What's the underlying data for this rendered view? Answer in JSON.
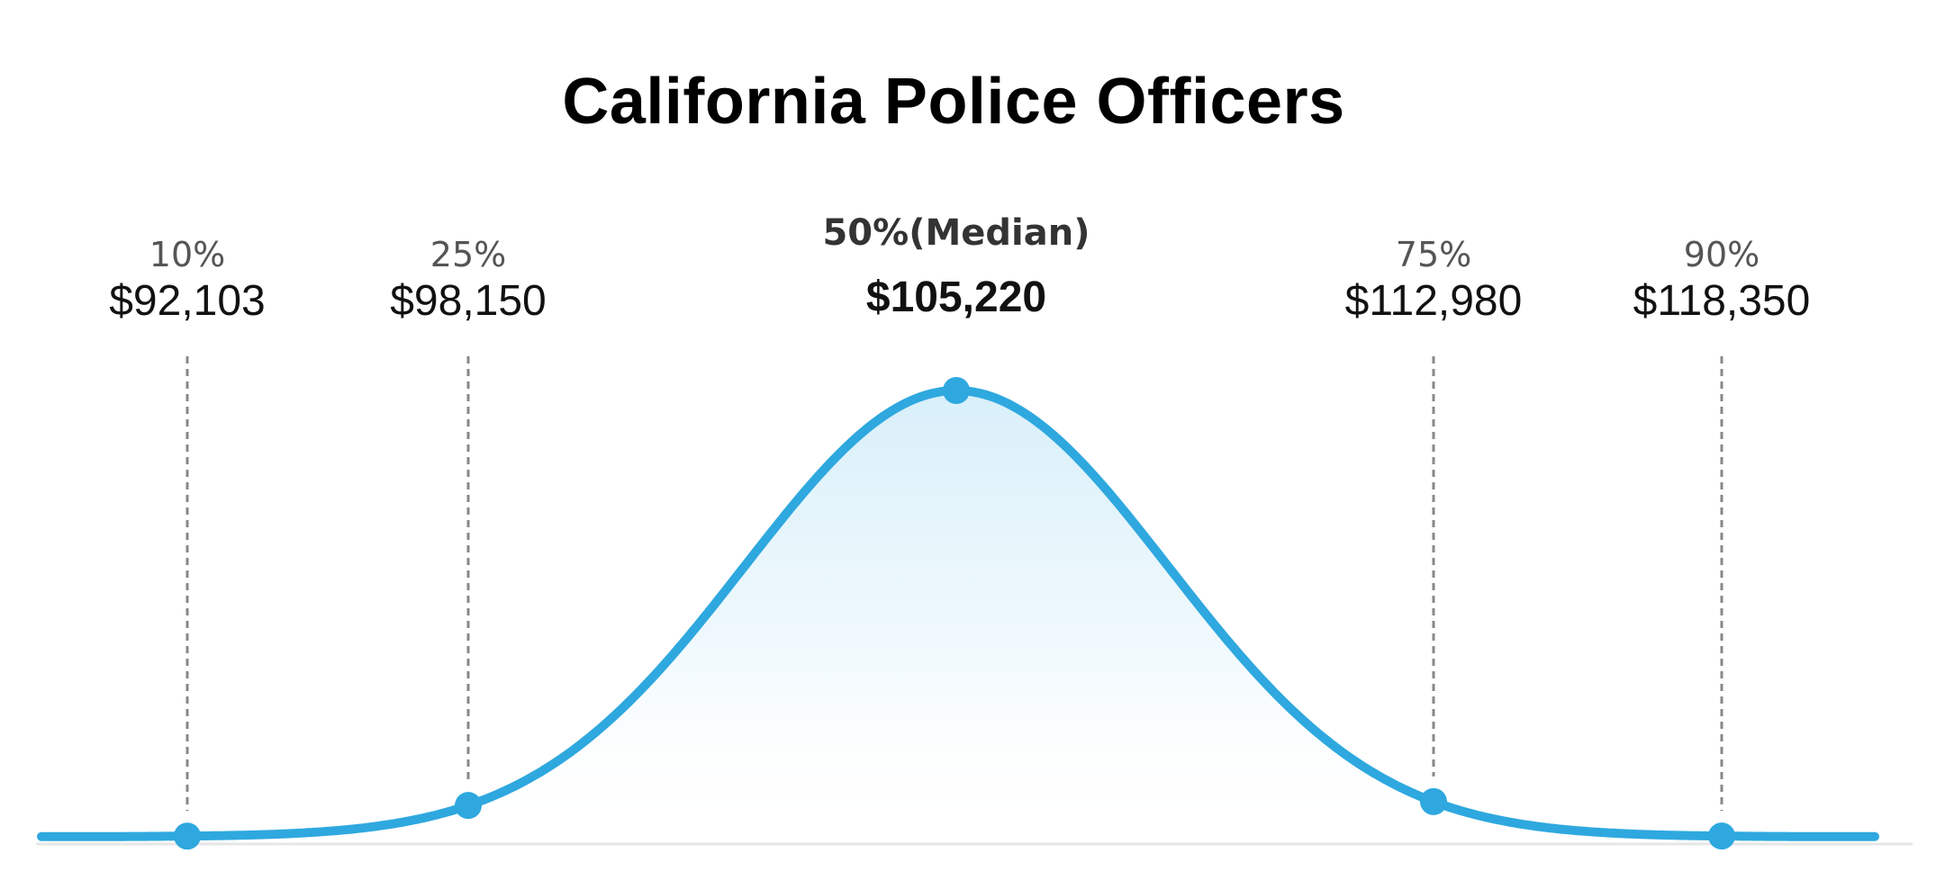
{
  "title": "California Police Officers",
  "chart_data": {
    "type": "area",
    "title": "California Police Officers",
    "xlabel": "",
    "ylabel": "",
    "grid": false,
    "legend": "none",
    "curve": "normal-distribution",
    "colors": {
      "line": "#2ea8df",
      "fill_top": "#d6eef9",
      "guide": "#888888",
      "baseline": "#e6e6e6"
    },
    "percentiles": [
      {
        "label": "10%",
        "value": 92103,
        "value_label": "$92,103",
        "median": false
      },
      {
        "label": "25%",
        "value": 98150,
        "value_label": "$98,150",
        "median": false
      },
      {
        "label": "50%(Median)",
        "value": 105220,
        "value_label": "$105,220",
        "median": true
      },
      {
        "label": "75%",
        "value": 112980,
        "value_label": "$112,980",
        "median": false
      },
      {
        "label": "90%",
        "value": 118350,
        "value_label": "$118,350",
        "median": false
      }
    ]
  }
}
